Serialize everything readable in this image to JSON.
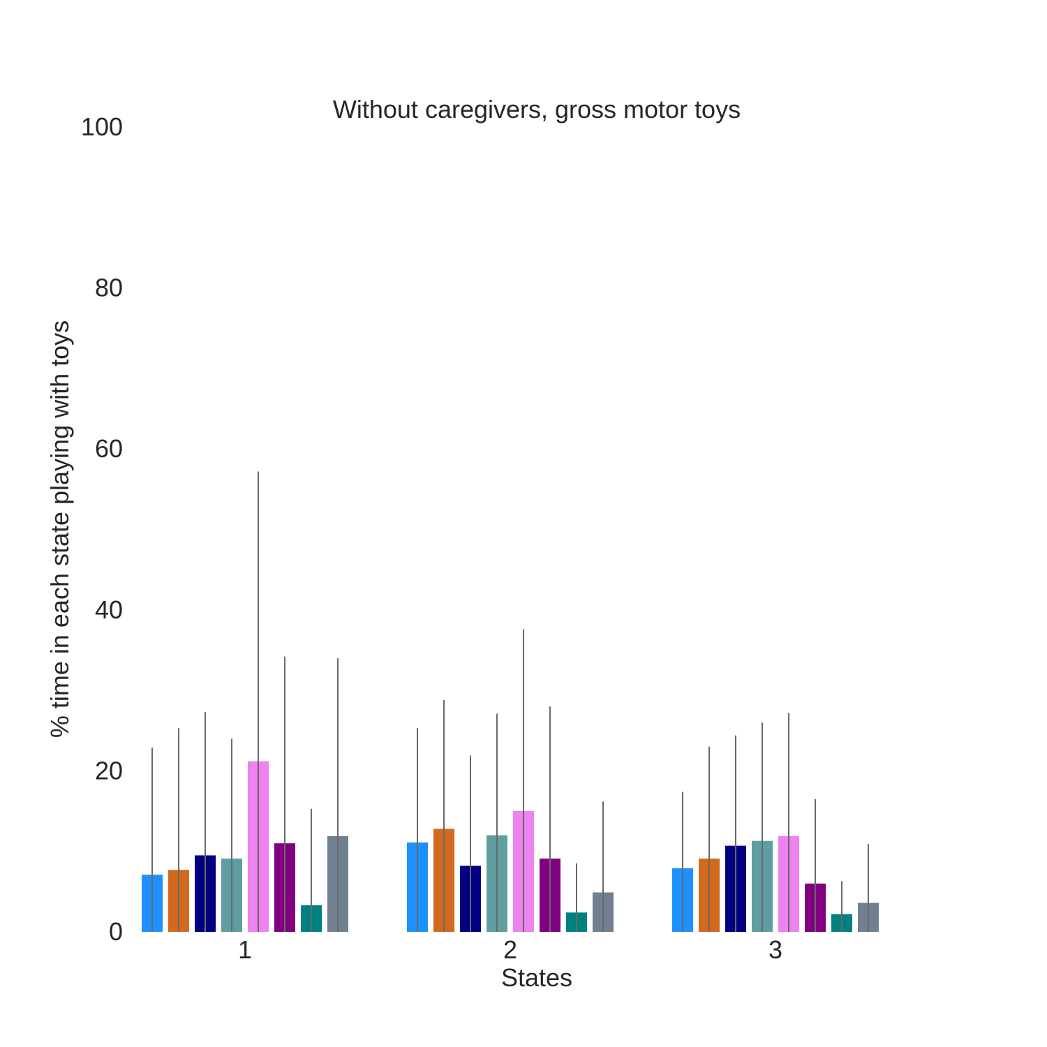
{
  "chart_data": {
    "type": "bar",
    "title": "Without caregivers, gross motor toys",
    "xlabel": "States",
    "ylabel": "% time in each state playing with toys",
    "categories": [
      "1",
      "2",
      "3"
    ],
    "ylim": [
      0,
      100
    ],
    "yticks": [
      "0",
      "20",
      "40",
      "60",
      "80",
      "100"
    ],
    "grid": false,
    "legend": "none",
    "error_bar_color": "#696969",
    "series": [
      {
        "color": "#1E90FF",
        "values": [
          7.1,
          11.1,
          7.9
        ],
        "err_upper": [
          22.9,
          25.3,
          17.4
        ]
      },
      {
        "color": "#D2691E",
        "values": [
          7.7,
          12.8,
          9.1
        ],
        "err_upper": [
          25.3,
          28.8,
          23.0
        ]
      },
      {
        "color": "#000080",
        "values": [
          9.5,
          8.2,
          10.7
        ],
        "err_upper": [
          27.3,
          21.9,
          24.4
        ]
      },
      {
        "color": "#5F9EA0",
        "values": [
          9.1,
          12.0,
          11.3
        ],
        "err_upper": [
          24.0,
          27.1,
          26.0
        ]
      },
      {
        "color": "#EE82EE",
        "values": [
          21.2,
          15.0,
          11.9
        ],
        "err_upper": [
          57.2,
          37.6,
          27.2
        ]
      },
      {
        "color": "#800080",
        "values": [
          11.0,
          9.1,
          6.0
        ],
        "err_upper": [
          34.2,
          28.0,
          16.5
        ]
      },
      {
        "color": "#008080",
        "values": [
          3.3,
          2.4,
          2.2
        ],
        "err_upper": [
          15.3,
          8.5,
          6.3
        ]
      },
      {
        "color": "#708090",
        "values": [
          11.9,
          4.9,
          3.6
        ],
        "err_upper": [
          34.0,
          16.2,
          10.9
        ]
      }
    ]
  }
}
